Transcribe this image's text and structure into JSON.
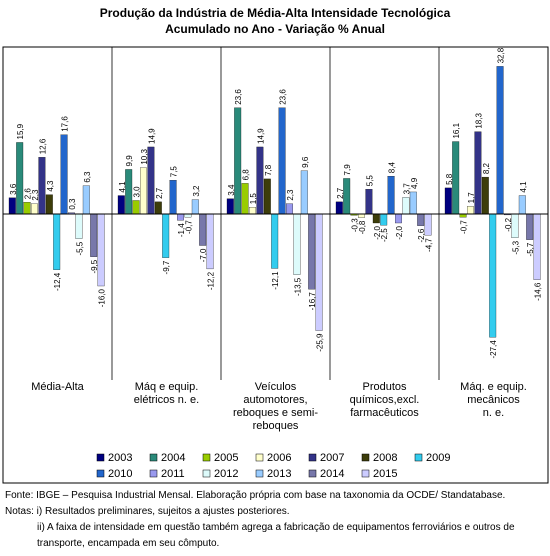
{
  "chart_data": {
    "type": "bar",
    "title": "Produção da Indústria de Média-Alta Intensidade Tecnológica",
    "subtitle": "Acumulado no Ano - Variação % Anual",
    "categories": [
      "Média-Alta",
      "Máq e equip.\nelétricos n. e.",
      "Veículos\nautomotores,\nreboques e semi-\nreboques",
      "Produtos\nquímicos,excl.\nfarmacêuticos",
      "Máq. e equip.\nmecânicos\nn. e."
    ],
    "series": [
      {
        "name": "2003",
        "color": "#000080",
        "values": [
          3.6,
          4.1,
          3.4,
          2.7,
          5.8
        ],
        "value_labels": [
          "3,6",
          "4,1",
          "3,4",
          "2,7",
          "5,8"
        ]
      },
      {
        "name": "2004",
        "color": "#2a8a7a",
        "values": [
          15.9,
          9.9,
          23.6,
          7.9,
          16.1
        ],
        "value_labels": [
          "15,9",
          "9,9",
          "23,6",
          "7,9",
          "16,1"
        ]
      },
      {
        "name": "2005",
        "color": "#99cc00",
        "values": [
          2.6,
          3.0,
          6.8,
          -0.3,
          -0.7
        ],
        "value_labels": [
          "2,6",
          "3,0",
          "6,8",
          "-0,3",
          "-0,7"
        ]
      },
      {
        "name": "2006",
        "color": "#ffffcc",
        "values": [
          2.3,
          10.3,
          1.5,
          -0.8,
          1.7
        ],
        "value_labels": [
          "2,3",
          "10,3",
          "1,5",
          "-0,8",
          "1,7"
        ]
      },
      {
        "name": "2007",
        "color": "#333388",
        "values": [
          12.6,
          14.9,
          14.9,
          5.5,
          18.3
        ],
        "value_labels": [
          "12,6",
          "14,9",
          "14,9",
          "5,5",
          "18,3"
        ]
      },
      {
        "name": "2008",
        "color": "#3d3d0a",
        "values": [
          4.3,
          2.7,
          7.8,
          -2.0,
          8.2
        ],
        "value_labels": [
          "4,3",
          "2,7",
          "7,8",
          "-2,0",
          "8,2"
        ]
      },
      {
        "name": "2009",
        "color": "#33ccee",
        "values": [
          -12.4,
          -9.7,
          -12.1,
          -2.5,
          -27.4
        ],
        "value_labels": [
          "-12,4",
          "-9,7",
          "-12,1",
          "-2,5",
          "-27,4"
        ]
      },
      {
        "name": "2010",
        "color": "#2266cc",
        "values": [
          17.6,
          7.5,
          23.6,
          8.4,
          32.8
        ],
        "value_labels": [
          "17,6",
          "7,5",
          "23,6",
          "8,4",
          "32,8"
        ]
      },
      {
        "name": "2011",
        "color": "#9999ee",
        "values": [
          0.3,
          -1.4,
          2.3,
          -2.0,
          -0.2
        ],
        "value_labels": [
          "0,3",
          "-1,4",
          "2,3",
          "-2,0",
          "-0,2"
        ]
      },
      {
        "name": "2012",
        "color": "#ddfbfb",
        "values": [
          -5.5,
          -0.7,
          -13.5,
          3.7,
          -5.3
        ],
        "value_labels": [
          "-5,5",
          "-0,7",
          "-13,5",
          "3,7",
          "-5,3"
        ]
      },
      {
        "name": "2013",
        "color": "#99ccff",
        "values": [
          6.3,
          3.2,
          9.6,
          4.9,
          4.1
        ],
        "value_labels": [
          "6,3",
          "3,2",
          "9,6",
          "4,9",
          "4,1"
        ]
      },
      {
        "name": "2014",
        "color": "#7777aa",
        "values": [
          -9.5,
          -7.0,
          -16.7,
          -2.6,
          -5.7
        ],
        "value_labels": [
          "-9,5",
          "-7,0",
          "-16,7",
          "-2,6",
          "-5,7"
        ]
      },
      {
        "name": "2015",
        "color": "#ccccff",
        "values": [
          -16.0,
          -12.2,
          -25.9,
          -4.7,
          -14.6
        ],
        "value_labels": [
          "-16,0",
          "-12,2",
          "-25,9",
          "-4,7",
          "-14,6"
        ]
      }
    ],
    "notes": [
      "Fonte: IBGE – Pesquisa Industrial Mensal. Elaboração própria com base na taxonomia da OCDE/ Standatabase.",
      "Notas: i) Resultados preliminares, sujeitos a ajustes posteriores.",
      "ii) A faixa de intensidade em questão também agrega a fabricação de equipamentos ferroviários e outros de transporte, encampada em seu cômputo."
    ]
  }
}
